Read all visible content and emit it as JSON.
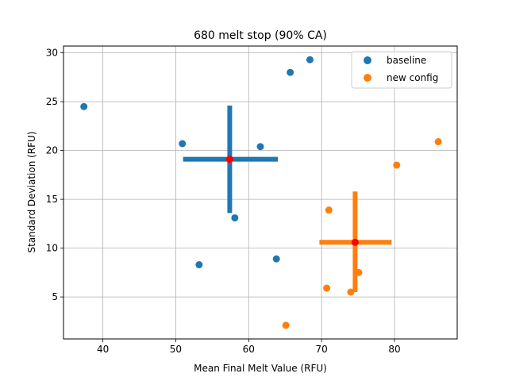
{
  "chart_data": {
    "type": "scatter",
    "title": "680 melt stop (90% CA)",
    "xlabel": "Mean Final Melt Value (RFU)",
    "ylabel": "Standard Deviation (RFU)",
    "xlim": [
      34.6,
      88.6
    ],
    "ylim": [
      0.7,
      30.7
    ],
    "xticks": [
      40,
      50,
      60,
      70,
      80
    ],
    "yticks": [
      5,
      10,
      15,
      20,
      25,
      30
    ],
    "grid": true,
    "legend_position": "top-right",
    "series": [
      {
        "name": "baseline",
        "color": "#1f77b4",
        "points": [
          [
            37.4,
            24.5
          ],
          [
            50.9,
            20.7
          ],
          [
            53.2,
            8.3
          ],
          [
            58.1,
            13.1
          ],
          [
            61.6,
            20.4
          ],
          [
            63.8,
            8.9
          ],
          [
            65.7,
            28.0
          ],
          [
            68.4,
            29.3
          ]
        ],
        "mean": [
          57.4,
          19.1
        ],
        "error_x": [
          51.0,
          64.0
        ],
        "error_y": [
          13.6,
          24.6
        ]
      },
      {
        "name": "new config",
        "color": "#ff7f0e",
        "points": [
          [
            65.1,
            2.1
          ],
          [
            70.7,
            5.9
          ],
          [
            71.0,
            13.9
          ],
          [
            74.0,
            5.5
          ],
          [
            75.1,
            7.5
          ],
          [
            80.3,
            18.5
          ],
          [
            86.0,
            20.9
          ]
        ],
        "mean": [
          74.6,
          10.6
        ],
        "error_x": [
          69.7,
          79.6
        ],
        "error_y": [
          5.5,
          15.8
        ]
      }
    ],
    "mean_marker_color": "#ff0000"
  }
}
